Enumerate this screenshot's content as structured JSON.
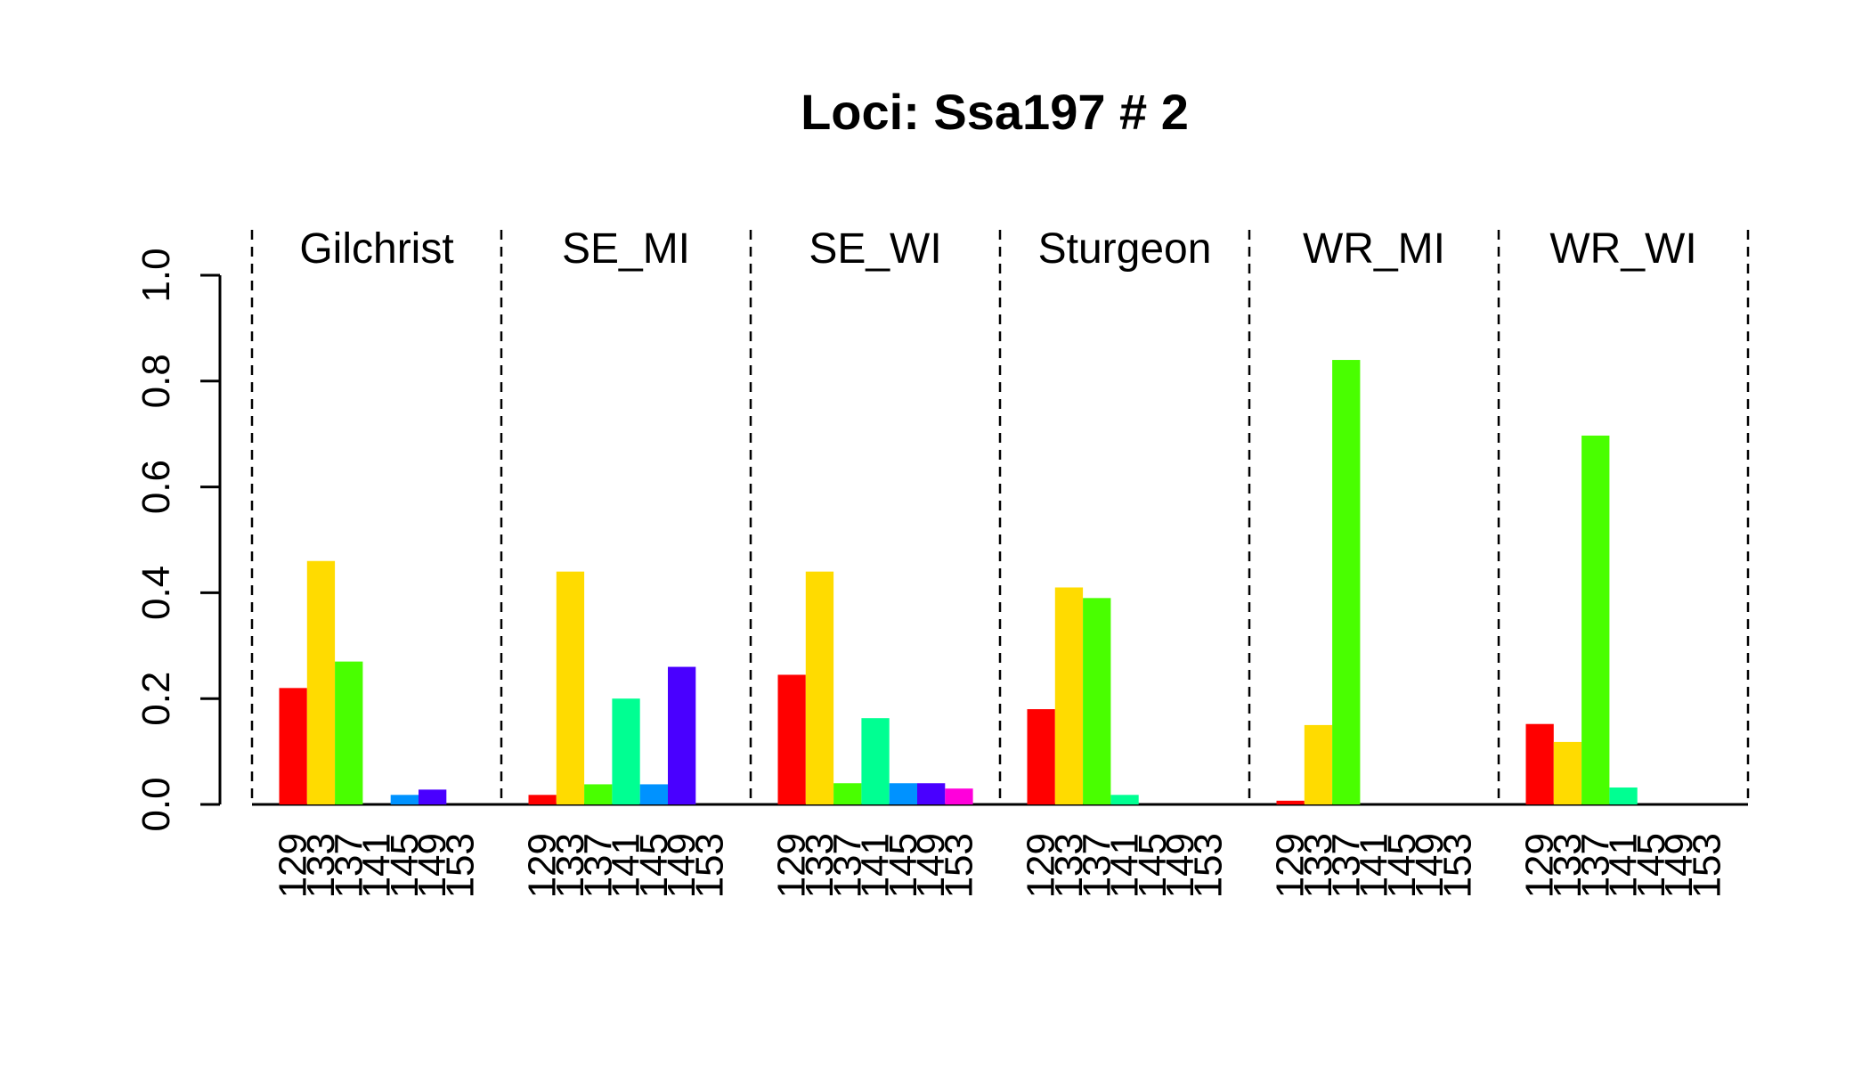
{
  "chart_data": {
    "type": "bar",
    "title": "Loci: Ssa197 # 2",
    "xlabel": "",
    "ylabel": "",
    "ylim": [
      0,
      1
    ],
    "y_ticks": [
      "0.0",
      "0.2",
      "0.4",
      "0.6",
      "0.8",
      "1.0"
    ],
    "categories": [
      "129",
      "133",
      "137",
      "141",
      "145",
      "149",
      "153"
    ],
    "colors": [
      "#FF0000",
      "#FFDB00",
      "#49FF00",
      "#00FF92",
      "#0092FF",
      "#4900FF",
      "#FF00DB"
    ],
    "grid": false,
    "panels": [
      {
        "name": "Gilchrist",
        "values": [
          0.22,
          0.46,
          0.27,
          0.0,
          0.018,
          0.028,
          0.0
        ]
      },
      {
        "name": "SE_MI",
        "values": [
          0.018,
          0.44,
          0.038,
          0.2,
          0.038,
          0.26,
          0.0
        ]
      },
      {
        "name": "SE_WI",
        "values": [
          0.245,
          0.44,
          0.04,
          0.163,
          0.04,
          0.04,
          0.03
        ]
      },
      {
        "name": "Sturgeon",
        "values": [
          0.18,
          0.41,
          0.39,
          0.018,
          0.0,
          0.0,
          0.0
        ]
      },
      {
        "name": "WR_MI",
        "values": [
          0.007,
          0.15,
          0.84,
          0.0,
          0.0,
          0.0,
          0.0
        ]
      },
      {
        "name": "WR_WI",
        "values": [
          0.152,
          0.118,
          0.697,
          0.032,
          0.0,
          0.0,
          0.0
        ]
      }
    ]
  }
}
